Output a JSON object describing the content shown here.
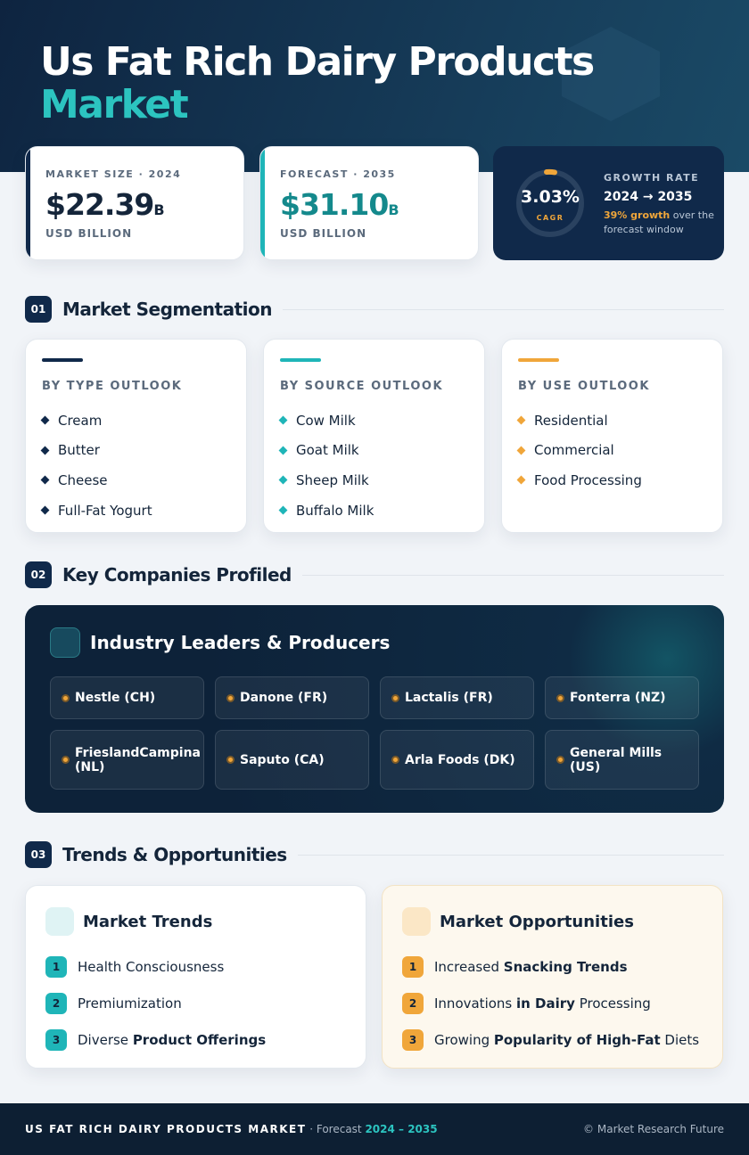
{
  "header": {
    "title_line1": "Us Fat Rich Dairy Products",
    "title_line2": "Market"
  },
  "stats": [
    {
      "label": "MARKET SIZE · 2024",
      "value": "$22.39",
      "unit": "B",
      "note": "USD BILLION"
    },
    {
      "label": "FORECAST · 2035",
      "value": "$31.10",
      "unit": "B",
      "note": "USD BILLION"
    }
  ],
  "growth": {
    "value": "3.03%",
    "caption": "CAGR",
    "label": "GROWTH RATE",
    "range": "2024 → 2035",
    "highlight": "39% growth",
    "text": " over the forecast window"
  },
  "sections": [
    {
      "number": "01",
      "title": "Market Segmentation"
    },
    {
      "number": "02",
      "title": "Key Companies Profiled"
    },
    {
      "number": "03",
      "title": "Trends & Opportunities"
    }
  ],
  "segments": [
    {
      "title": "BY TYPE OUTLOOK",
      "items": [
        "Cream",
        "Butter",
        "Cheese",
        "Full-Fat Yogurt"
      ]
    },
    {
      "title": "BY SOURCE OUTLOOK",
      "items": [
        "Cow Milk",
        "Goat Milk",
        "Sheep Milk",
        "Buffalo Milk"
      ]
    },
    {
      "title": "BY USE OUTLOOK",
      "items": [
        "Residential",
        "Commercial",
        "Food Processing"
      ]
    }
  ],
  "companies": {
    "title": "Industry Leaders & Producers",
    "items": [
      "Nestle (CH)",
      "Danone (FR)",
      "Lactalis (FR)",
      "Fonterra (NZ)",
      "FrieslandCampina (NL)",
      "Saputo (CA)",
      "Arla Foods (DK)",
      "General Mills (US)"
    ]
  },
  "trends": [
    {
      "title": "Market Trends",
      "items": [
        {
          "n": "1",
          "parts": [
            {
              "t": "Health Consciousness"
            }
          ]
        },
        {
          "n": "2",
          "parts": [
            {
              "t": "Premiumization"
            }
          ]
        },
        {
          "n": "3",
          "parts": [
            {
              "t": "Diverse "
            },
            {
              "b": "Product Offerings"
            }
          ]
        }
      ]
    },
    {
      "title": "Market Opportunities",
      "items": [
        {
          "n": "1",
          "parts": [
            {
              "t": "Increased "
            },
            {
              "b": "Snacking Trends"
            }
          ]
        },
        {
          "n": "2",
          "parts": [
            {
              "t": "Innovations "
            },
            {
              "b": "in Dairy"
            },
            {
              "t": " Processing"
            }
          ]
        },
        {
          "n": "3",
          "parts": [
            {
              "t": "Growing "
            },
            {
              "b": "Popularity of High-Fat"
            },
            {
              "t": " Diets"
            }
          ]
        }
      ]
    }
  ],
  "footer": {
    "title": "US FAT RICH DAIRY PRODUCTS MARKET",
    "sep": " · Forecast ",
    "years": "2024 – 2035",
    "credit": "© Market Research Future"
  }
}
